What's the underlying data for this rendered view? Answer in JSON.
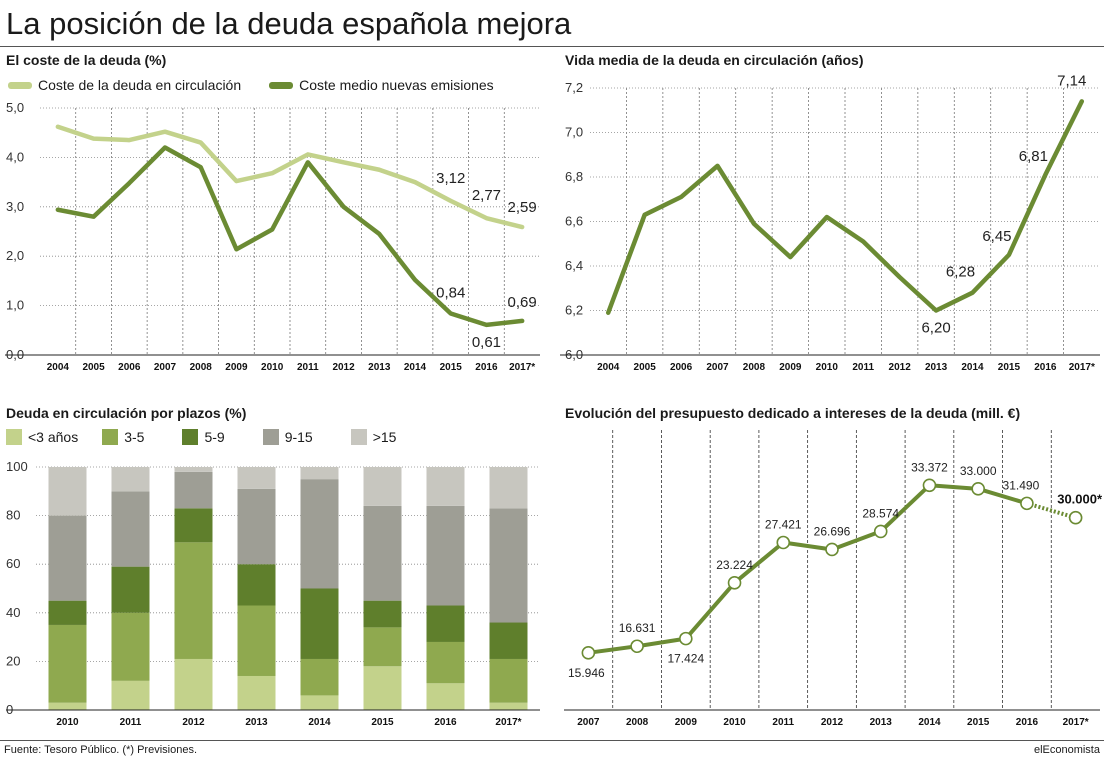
{
  "page": {
    "title": "La posición de la deuda española mejora",
    "source": "Fuente: Tesoro Público. (*) Previsiones.",
    "brand": "elEconomista"
  },
  "colors": {
    "light_green": "#c3d28b",
    "dark_green": "#6b8b33",
    "accent": "#5a7a2a"
  },
  "panels": {
    "cost": {
      "title": "El coste de la deuda (%)",
      "legend": [
        {
          "label": "Coste de la deuda en circulación",
          "color": "#c3d28b"
        },
        {
          "label": "Coste medio nuevas emisiones",
          "color": "#6b8b33"
        }
      ],
      "labels": [
        "3,12",
        "2,77",
        "2,59",
        "0,61",
        "0,84",
        "0,69"
      ]
    },
    "life": {
      "title": "Vida media de la deuda en circulación (años)"
    },
    "maturity": {
      "title": "Deuda en circulación por plazos (%)",
      "legend": [
        {
          "label": "<3 años",
          "color": "#c3d28b"
        },
        {
          "label": "3-5",
          "color": "#8fa94f"
        },
        {
          "label": "5-9",
          "color": "#5f7f2c"
        },
        {
          "label": "9-15",
          "color": "#9e9e95"
        },
        {
          "label": ">15",
          "color": "#c7c6bf"
        }
      ]
    },
    "budget": {
      "title": "Evolución del presupuesto dedicado a intereses de la deuda (mill. €)"
    }
  },
  "chart_data": [
    {
      "type": "line",
      "title": "El coste de la deuda (%)",
      "categories": [
        "2004",
        "2005",
        "2006",
        "2007",
        "2008",
        "2009",
        "2010",
        "2011",
        "2012",
        "2013",
        "2014",
        "2015",
        "2016",
        "2017*"
      ],
      "series": [
        {
          "name": "Coste de la deuda en circulación",
          "color": "#c3d28b",
          "values": [
            4.62,
            4.38,
            4.35,
            4.52,
            4.3,
            3.52,
            3.68,
            4.06,
            3.9,
            3.75,
            3.5,
            3.12,
            2.77,
            2.59
          ]
        },
        {
          "name": "Coste medio nuevas emisiones",
          "color": "#6b8b33",
          "values": [
            2.94,
            2.8,
            3.48,
            4.2,
            3.8,
            2.14,
            2.54,
            3.9,
            3.0,
            2.45,
            1.52,
            0.84,
            0.61,
            0.69
          ]
        }
      ],
      "ylim": [
        0,
        5
      ],
      "yticks": [
        "0,0",
        "1,0",
        "2,0",
        "3,0",
        "4,0",
        "5,0"
      ],
      "grid": true
    },
    {
      "type": "line",
      "title": "Vida media de la deuda en circulación (años)",
      "categories": [
        "2004",
        "2005",
        "2006",
        "2007",
        "2008",
        "2009",
        "2010",
        "2011",
        "2012",
        "2013",
        "2014",
        "2015",
        "2016",
        "2017*"
      ],
      "series": [
        {
          "color": "#6b8b33",
          "values": [
            6.19,
            6.63,
            6.71,
            6.85,
            6.59,
            6.44,
            6.62,
            6.51,
            6.35,
            6.2,
            6.28,
            6.45,
            6.81,
            7.14
          ]
        }
      ],
      "ylim": [
        6.0,
        7.2
      ],
      "yticks": [
        "6,0",
        "6,2",
        "6,4",
        "6,6",
        "6,8",
        "7,0",
        "7,2"
      ],
      "labels": {
        "9": "6,20",
        "10": "6,28",
        "11": "6,45",
        "12": "6,81",
        "13": "7,14"
      },
      "grid": true
    },
    {
      "type": "bar",
      "stacked": true,
      "title": "Deuda en circulación por plazos (%)",
      "categories": [
        "2010",
        "2011",
        "2012",
        "2013",
        "2014",
        "2015",
        "2016",
        "2017*"
      ],
      "series": [
        {
          "name": "<3 años",
          "color": "#c3d28b",
          "values": [
            3,
            12,
            21,
            14,
            6,
            18,
            11,
            3
          ]
        },
        {
          "name": "3-5",
          "color": "#8fa94f",
          "values": [
            32,
            28,
            48,
            29,
            15,
            16,
            17,
            18
          ]
        },
        {
          "name": "5-9",
          "color": "#5f7f2c",
          "values": [
            10,
            19,
            14,
            17,
            29,
            11,
            15,
            15
          ]
        },
        {
          "name": "9-15",
          "color": "#9e9e95",
          "values": [
            35,
            31,
            15,
            31,
            45,
            39,
            41,
            47
          ]
        },
        {
          "name": ">15",
          "color": "#c7c6bf",
          "values": [
            20,
            10,
            2,
            9,
            5,
            16,
            16,
            17
          ]
        }
      ],
      "ylim": [
        0,
        100
      ],
      "yticks": [
        "0",
        "20",
        "40",
        "60",
        "80",
        "100"
      ]
    },
    {
      "type": "line",
      "title": "Evolución del presupuesto dedicado a intereses de la deuda (mill. €)",
      "categories": [
        "2007",
        "2008",
        "2009",
        "2010",
        "2011",
        "2012",
        "2013",
        "2014",
        "2015",
        "2016",
        "2017*"
      ],
      "series": [
        {
          "color": "#6b8b33",
          "values": [
            15946,
            16631,
            17424,
            23224,
            27421,
            26696,
            28574,
            33372,
            33000,
            31490,
            30000
          ]
        }
      ],
      "labels": [
        "15.946",
        "16.631",
        "17.424",
        "23.224",
        "27.421",
        "26.696",
        "28.574",
        "33.372",
        "33.000",
        "31.490",
        "30.000*"
      ],
      "projected_from_index": 9,
      "grid": true
    }
  ]
}
